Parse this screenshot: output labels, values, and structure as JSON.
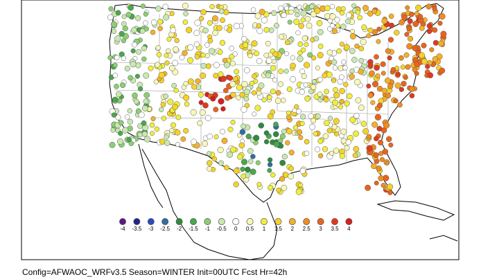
{
  "caption": "Config=AFWAOC_WRFv3.5 Season=WINTER Init=00UTC Fcst Hr=42h",
  "legend": {
    "labels": [
      "-4",
      "-3.5",
      "-3",
      "-2.5",
      "-2",
      "-1.5",
      "-1",
      "-0.5",
      "0",
      "0.5",
      "1",
      "1.5",
      "2",
      "2.5",
      "3",
      "3.5",
      "4"
    ],
    "colors": [
      "#5b1a8c",
      "#23238f",
      "#2a49c4",
      "#2c6ea5",
      "#2e8b3e",
      "#4aa84a",
      "#8bcf72",
      "#c8e8b0",
      "#ffffff",
      "#f7f7b8",
      "#f0ee3c",
      "#f5d22a",
      "#f5b02a",
      "#f08c1e",
      "#e8641e",
      "#e03a1e",
      "#d81e1e"
    ]
  }
}
